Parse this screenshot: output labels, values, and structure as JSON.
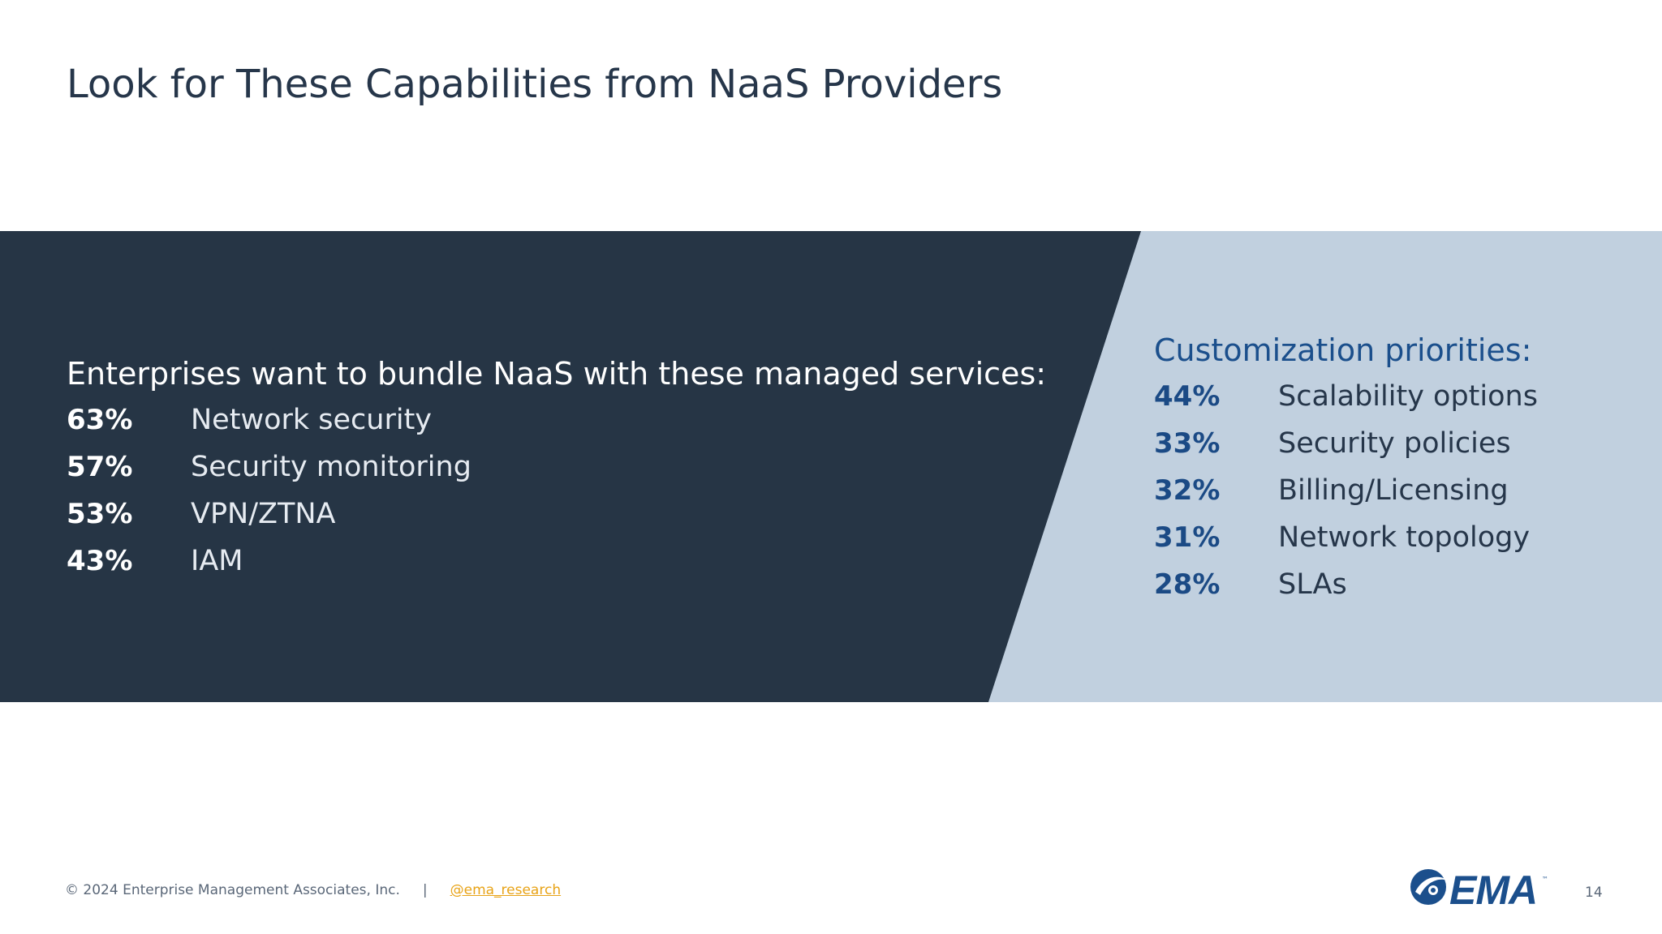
{
  "slide": {
    "title": "Look for These Capabilities from NaaS Providers",
    "colors": {
      "dark_panel": "#263545",
      "light_panel": "#c1d0df",
      "accent_blue": "#1b4f8c",
      "link_orange": "#e8a317"
    }
  },
  "left_panel": {
    "heading": "Enterprises want to bundle NaaS with these managed services:",
    "items": [
      {
        "pct": "63%",
        "label": "Network security"
      },
      {
        "pct": "57%",
        "label": "Security monitoring"
      },
      {
        "pct": "53%",
        "label": "VPN/ZTNA"
      },
      {
        "pct": "43%",
        "label": "IAM"
      }
    ]
  },
  "right_panel": {
    "heading": "Customization priorities:",
    "items": [
      {
        "pct": "44%",
        "label": "Scalability options"
      },
      {
        "pct": "33%",
        "label": "Security policies"
      },
      {
        "pct": "32%",
        "label": "Billing/Licensing"
      },
      {
        "pct": "31%",
        "label": "Network topology"
      },
      {
        "pct": "28%",
        "label": "SLAs"
      }
    ]
  },
  "footer": {
    "copyright": "© 2024 Enterprise Management Associates, Inc.",
    "separator": "|",
    "link": "@ema_research",
    "page_number": "14"
  },
  "logo": {
    "text": "EMA",
    "icon": "ema-swoosh-icon",
    "trademark": "™"
  }
}
